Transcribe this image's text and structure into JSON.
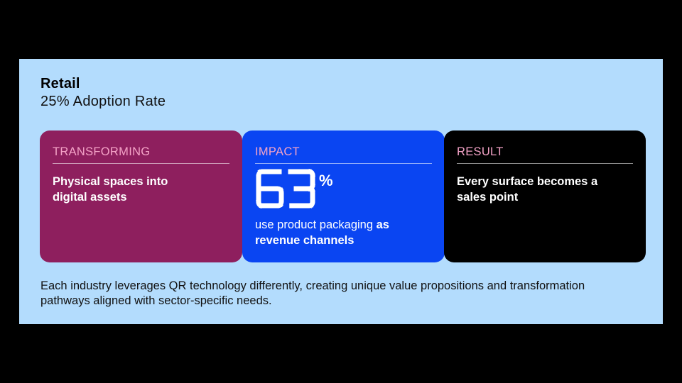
{
  "header": {
    "title": "Retail",
    "subtitle": "25% Adoption Rate"
  },
  "cards": {
    "transforming": {
      "label": "TRANSFORMING",
      "text": "Physical spaces into digital assets"
    },
    "impact": {
      "label": "IMPACT",
      "value": "63",
      "unit": "%",
      "text_regular": "use product packaging ",
      "text_bold": "as revenue channels"
    },
    "result": {
      "label": "RESULT",
      "text": "Every surface becomes a sales point"
    }
  },
  "footer": {
    "text": "Each industry leverages QR technology differently, creating unique value propositions and transformation pathways aligned with sector-specific needs."
  },
  "colors": {
    "panel_bg": "#b3dcfd",
    "transforming_bg": "#8e1f5e",
    "impact_bg": "#0a45f2",
    "result_bg": "#000000",
    "label_pink": "#f4a3c7"
  }
}
